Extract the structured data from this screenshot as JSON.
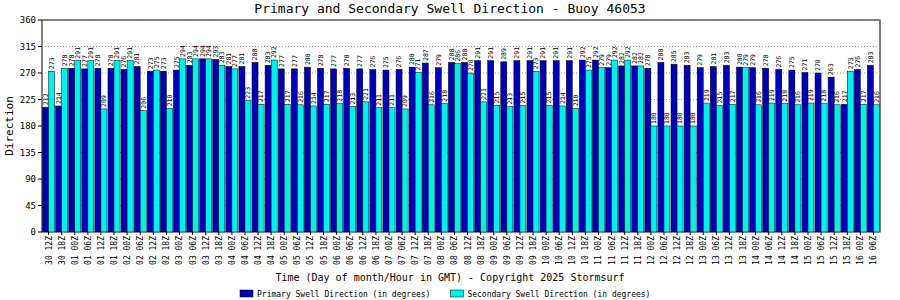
{
  "chart_data": {
    "type": "bar",
    "title": "Primary and Secondary Swell Direction - Buoy 46053",
    "x_label": "Time (Day of month/Hour in GMT) - Copyright 2025 Stormsurf",
    "y_label": "Direction",
    "categories": [
      "30 12Z",
      "30 18Z",
      "01 00Z",
      "01 06Z",
      "01 12Z",
      "01 18Z",
      "02 00Z",
      "02 06Z",
      "02 12Z",
      "02 18Z",
      "03 00Z",
      "03 06Z",
      "03 12Z",
      "03 18Z",
      "04 00Z",
      "04 06Z",
      "04 12Z",
      "04 18Z",
      "05 00Z",
      "05 06Z",
      "05 12Z",
      "05 18Z",
      "06 00Z",
      "06 06Z",
      "06 12Z",
      "06 18Z",
      "07 00Z",
      "07 06Z",
      "07 12Z",
      "07 18Z",
      "08 00Z",
      "08 06Z",
      "08 12Z",
      "08 18Z",
      "09 00Z",
      "09 06Z",
      "09 12Z",
      "09 18Z",
      "10 00Z",
      "10 06Z",
      "10 12Z",
      "10 18Z",
      "11 00Z",
      "11 06Z",
      "11 12Z",
      "11 18Z",
      "12 00Z",
      "12 06Z",
      "12 12Z",
      "12 18Z",
      "13 00Z",
      "13 06Z",
      "13 12Z",
      "13 18Z",
      "14 00Z",
      "14 06Z",
      "14 12Z",
      "14 18Z",
      "15 00Z",
      "15 06Z",
      "15 12Z",
      "15 18Z",
      "16 00Z",
      "16 06Z"
    ],
    "series": [
      {
        "name": "Primary Swell Direction (in degrees)",
        "color": "#0000b4",
        "values": [
          212,
          214,
          278,
          277,
          278,
          278,
          276,
          281,
          273,
          273,
          275,
          283,
          294,
          293,
          281,
          281,
          288,
          283,
          277,
          277,
          280,
          278,
          277,
          278,
          277,
          276,
          275,
          276,
          280,
          287,
          279,
          288,
          288,
          291,
          291,
          289,
          291,
          291,
          291,
          291,
          291,
          292,
          292,
          279,
          282,
          282,
          278,
          288,
          285,
          283,
          279,
          281,
          283,
          280,
          279,
          278,
          276,
          275,
          271,
          270,
          263,
          217,
          276,
          283
        ]
      },
      {
        "name": "Secondary Swell Direction (in degrees)",
        "color": "#00f0f0",
        "values": [
          273,
          278,
          291,
          291,
          209,
          291,
          291,
          206,
          275,
          210,
          294,
          294,
          294,
          283,
          277,
          223,
          217,
          292,
          217,
          216,
          214,
          217,
          218,
          213,
          221,
          211,
          211,
          209,
          271,
          216,
          218,
          286,
          270,
          221,
          215,
          213,
          215,
          273,
          215,
          214,
          210,
          275,
          279,
          292,
          292,
          282,
          180,
          180,
          180,
          180,
          219,
          215,
          217,
          279,
          216,
          219,
          218,
          216,
          219,
          218,
          216,
          273,
          217,
          216
        ]
      }
    ],
    "ylim": [
      0,
      360
    ],
    "yticks": [
      0,
      45,
      90,
      135,
      180,
      225,
      270,
      315,
      360
    ],
    "grid": true,
    "data_labels": true,
    "legend": "bottom"
  }
}
